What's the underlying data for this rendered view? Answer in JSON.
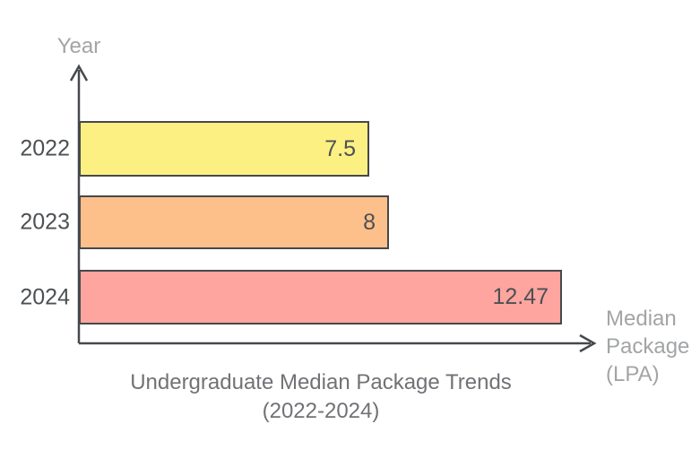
{
  "chart_data": {
    "type": "bar",
    "orientation": "horizontal",
    "title": "Undergraduate Median Package Trends (2022-2024)",
    "title_lines": [
      "Undergraduate Median Package Trends",
      "(2022-2024)"
    ],
    "xlabel": "Median Package (LPA)",
    "xlabel_lines": [
      "Median",
      "Package",
      "(LPA)"
    ],
    "ylabel": "Year",
    "categories": [
      "2022",
      "2023",
      "2024"
    ],
    "values": [
      7.5,
      8,
      12.47
    ],
    "value_labels": [
      "7.5",
      "8",
      "12.47"
    ],
    "bar_colors": [
      "#FCF083",
      "#FEC08A",
      "#FFA5A0"
    ],
    "xlim": [
      0,
      13.3
    ],
    "grid": false,
    "legend": false
  },
  "colors": {
    "background": "#FFFFFF",
    "axis": "#45484C",
    "bar_border": "#45484C",
    "category_label": "#4D5053",
    "value_label": "#4D5053",
    "muted_label": "#A2A4A6",
    "title": "#707275"
  }
}
